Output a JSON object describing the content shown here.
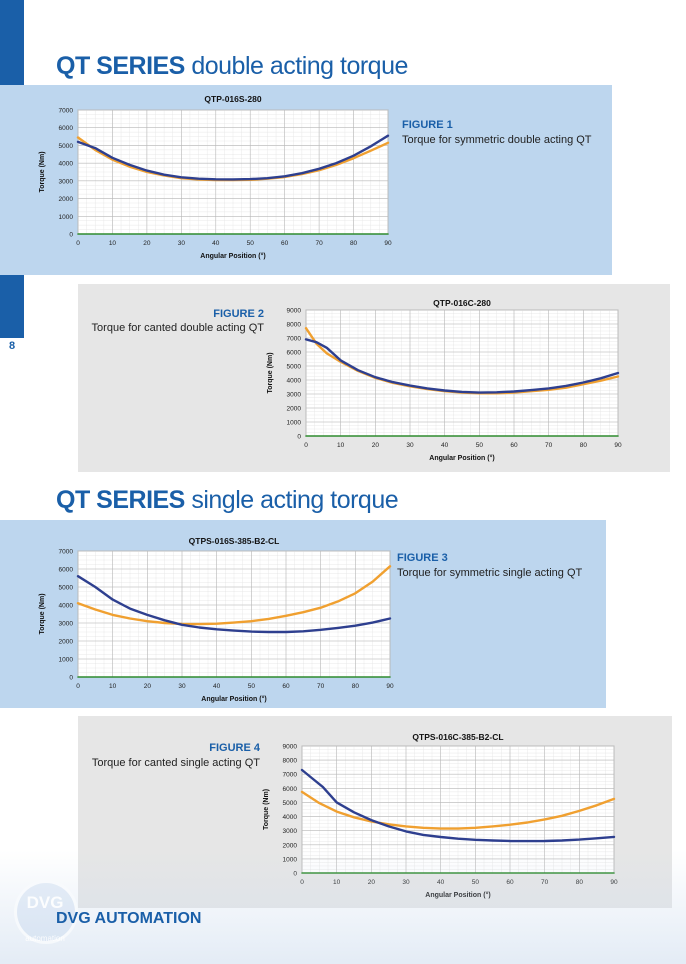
{
  "page": {
    "number": "8",
    "company": "DVG AUTOMATION",
    "logo_text": "DVG",
    "logo_sub": "automation"
  },
  "sections": [
    {
      "bold": "QT SERIES",
      "rest": "double acting torque"
    },
    {
      "bold": "QT SERIES",
      "rest": "single acting torque"
    }
  ],
  "figures": [
    {
      "label": "FIGURE 1",
      "caption": "Torque for symmetric double acting QT"
    },
    {
      "label": "FIGURE 2",
      "caption": "Torque for canted double acting QT"
    },
    {
      "label": "FIGURE 3",
      "caption": "Torque for symmetric single acting QT"
    },
    {
      "label": "FIGURE 4",
      "caption": "Torque for canted single acting QT"
    }
  ],
  "colors": {
    "brand": "#1a5fa8",
    "series_blue": "#2e3f8f",
    "series_orange": "#f0a030",
    "baseline_green": "#2e8b2e"
  },
  "chart_data": [
    {
      "type": "line",
      "title": "QTP-016S-280",
      "xlabel": "Angular Position (°)",
      "ylabel": "Torque (Nm)",
      "xlim": [
        0,
        90
      ],
      "ylim": [
        0,
        7000
      ],
      "yticks": [
        0,
        1000,
        2000,
        3000,
        4000,
        5000,
        6000,
        7000
      ],
      "xticks": [
        0,
        10,
        20,
        30,
        40,
        50,
        60,
        70,
        80,
        90
      ],
      "grid": true,
      "series": [
        {
          "color": "#f0a030",
          "x": [
            0,
            5,
            10,
            15,
            20,
            25,
            30,
            35,
            40,
            45,
            50,
            55,
            60,
            65,
            70,
            75,
            80,
            85,
            90
          ],
          "values": [
            5450,
            4750,
            4200,
            3800,
            3500,
            3300,
            3150,
            3080,
            3050,
            3050,
            3060,
            3120,
            3220,
            3380,
            3600,
            3900,
            4280,
            4700,
            5150
          ]
        },
        {
          "color": "#2e3f8f",
          "x": [
            0,
            5,
            10,
            15,
            20,
            25,
            30,
            35,
            40,
            45,
            50,
            55,
            60,
            65,
            70,
            75,
            80,
            85,
            90
          ],
          "values": [
            5200,
            4850,
            4300,
            3900,
            3580,
            3350,
            3200,
            3120,
            3090,
            3080,
            3100,
            3150,
            3260,
            3430,
            3680,
            4000,
            4420,
            4950,
            5550
          ]
        },
        {
          "color": "#2e8b2e",
          "x": [
            0,
            90
          ],
          "values": [
            0,
            0
          ]
        }
      ]
    },
    {
      "type": "line",
      "title": "QTP-016C-280",
      "xlabel": "Angular Position (°)",
      "ylabel": "Torque (Nm)",
      "xlim": [
        0,
        90
      ],
      "ylim": [
        0,
        9000
      ],
      "yticks": [
        0,
        1000,
        2000,
        3000,
        4000,
        5000,
        6000,
        7000,
        8000,
        9000
      ],
      "xticks": [
        0,
        10,
        20,
        30,
        40,
        50,
        60,
        70,
        80,
        90
      ],
      "grid": true,
      "series": [
        {
          "color": "#f0a030",
          "x": [
            0,
            3,
            6,
            10,
            15,
            20,
            25,
            30,
            35,
            40,
            45,
            50,
            55,
            60,
            65,
            70,
            75,
            80,
            85,
            90
          ],
          "values": [
            7700,
            6600,
            5900,
            5300,
            4650,
            4150,
            3800,
            3550,
            3350,
            3200,
            3100,
            3050,
            3050,
            3100,
            3200,
            3300,
            3450,
            3700,
            3950,
            4250
          ]
        },
        {
          "color": "#2e3f8f",
          "x": [
            0,
            3,
            6,
            10,
            15,
            20,
            25,
            30,
            35,
            40,
            45,
            50,
            55,
            60,
            65,
            70,
            75,
            80,
            85,
            90
          ],
          "values": [
            6900,
            6700,
            6300,
            5400,
            4700,
            4200,
            3850,
            3600,
            3400,
            3250,
            3150,
            3100,
            3120,
            3180,
            3280,
            3400,
            3580,
            3820,
            4120,
            4500
          ]
        },
        {
          "color": "#2e8b2e",
          "x": [
            0,
            90
          ],
          "values": [
            0,
            0
          ]
        }
      ]
    },
    {
      "type": "line",
      "title": "QTPS-016S-385-B2-CL",
      "xlabel": "Angular Position (°)",
      "ylabel": "Torque (Nm)",
      "xlim": [
        0,
        90
      ],
      "ylim": [
        0,
        7000
      ],
      "yticks": [
        0,
        1000,
        2000,
        3000,
        4000,
        5000,
        6000,
        7000
      ],
      "xticks": [
        0,
        10,
        20,
        30,
        40,
        50,
        60,
        70,
        80,
        90
      ],
      "grid": true,
      "series": [
        {
          "color": "#f0a030",
          "x": [
            0,
            5,
            10,
            15,
            20,
            25,
            30,
            35,
            40,
            45,
            50,
            55,
            60,
            65,
            70,
            75,
            80,
            85,
            90
          ],
          "values": [
            4100,
            3750,
            3450,
            3250,
            3100,
            3000,
            2950,
            2940,
            2960,
            3020,
            3100,
            3230,
            3400,
            3600,
            3850,
            4200,
            4650,
            5300,
            6150
          ]
        },
        {
          "color": "#2e3f8f",
          "x": [
            0,
            5,
            10,
            15,
            20,
            25,
            30,
            35,
            40,
            45,
            50,
            55,
            60,
            65,
            70,
            75,
            80,
            85,
            90
          ],
          "values": [
            5600,
            5000,
            4300,
            3800,
            3450,
            3150,
            2900,
            2750,
            2650,
            2580,
            2520,
            2500,
            2500,
            2540,
            2620,
            2730,
            2850,
            3020,
            3250
          ]
        },
        {
          "color": "#2e8b2e",
          "x": [
            0,
            90
          ],
          "values": [
            0,
            0
          ]
        }
      ]
    },
    {
      "type": "line",
      "title": "QTPS-016C-385-B2-CL",
      "xlabel": "Angular Position (°)",
      "ylabel": "Torque (Nm)",
      "xlim": [
        0,
        90
      ],
      "ylim": [
        0,
        9000
      ],
      "yticks": [
        0,
        1000,
        2000,
        3000,
        4000,
        5000,
        6000,
        7000,
        8000,
        9000
      ],
      "xticks": [
        0,
        10,
        20,
        30,
        40,
        50,
        60,
        70,
        80,
        90
      ],
      "grid": true,
      "series": [
        {
          "color": "#f0a030",
          "x": [
            0,
            5,
            10,
            15,
            20,
            25,
            30,
            35,
            40,
            45,
            50,
            55,
            60,
            65,
            70,
            75,
            80,
            85,
            90
          ],
          "values": [
            5750,
            4950,
            4350,
            3950,
            3650,
            3450,
            3300,
            3200,
            3150,
            3150,
            3200,
            3300,
            3420,
            3580,
            3800,
            4050,
            4400,
            4800,
            5250
          ]
        },
        {
          "color": "#2e3f8f",
          "x": [
            0,
            3,
            6,
            10,
            15,
            20,
            25,
            30,
            35,
            40,
            45,
            50,
            55,
            60,
            65,
            70,
            75,
            80,
            85,
            90
          ],
          "values": [
            7300,
            6700,
            6100,
            5000,
            4300,
            3750,
            3300,
            2950,
            2700,
            2550,
            2430,
            2350,
            2300,
            2270,
            2260,
            2270,
            2300,
            2370,
            2460,
            2560
          ]
        },
        {
          "color": "#2e8b2e",
          "x": [
            0,
            90
          ],
          "values": [
            0,
            0
          ]
        }
      ]
    }
  ]
}
